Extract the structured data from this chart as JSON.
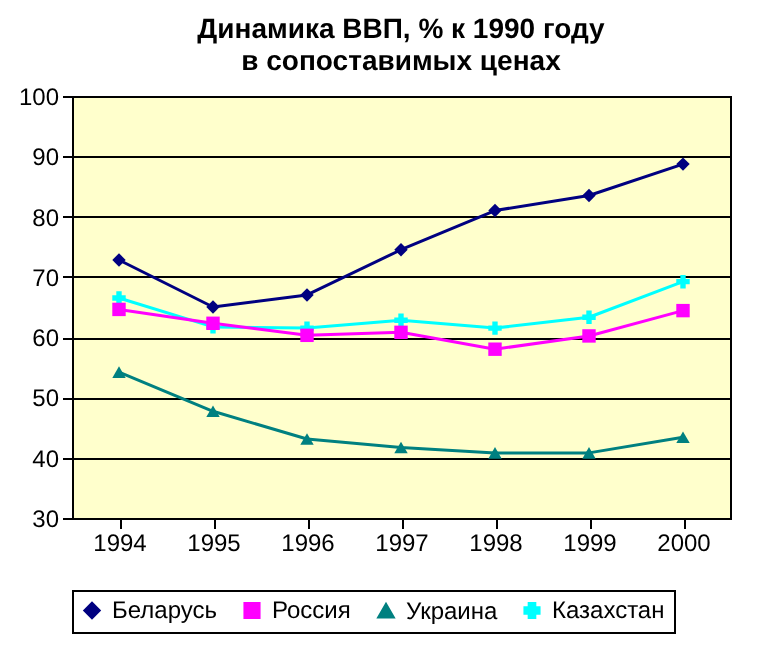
{
  "chart_data": {
    "type": "line",
    "title": "Динамика ВВП, % к 1990 году в сопоставимых ценах",
    "categories": [
      "1994",
      "1995",
      "1996",
      "1997",
      "1998",
      "1999",
      "2000"
    ],
    "series": [
      {
        "name": "Беларусь",
        "color": "#000080",
        "marker": "diamond",
        "values": [
          72.8,
          65,
          67,
          74.5,
          81,
          83.5,
          88.7
        ]
      },
      {
        "name": "Россия",
        "color": "#ff00ff",
        "marker": "square",
        "values": [
          64.6,
          62.3,
          60.3,
          60.8,
          58,
          60.2,
          64.4
        ]
      },
      {
        "name": "Украина",
        "color": "#008080",
        "marker": "triangle",
        "values": [
          54.2,
          47.7,
          43.1,
          41.7,
          40.8,
          40.8,
          43.4
        ]
      },
      {
        "name": "Казахстан",
        "color": "#00ffff",
        "marker": "cross",
        "values": [
          66.5,
          61.7,
          61.5,
          62.8,
          61.5,
          63.3,
          69.2
        ]
      }
    ],
    "ylim": [
      30,
      100
    ],
    "yticks": [
      30,
      40,
      50,
      60,
      70,
      80,
      90,
      100
    ],
    "grid": "y",
    "legend": "bottom",
    "line_style": "solid"
  }
}
